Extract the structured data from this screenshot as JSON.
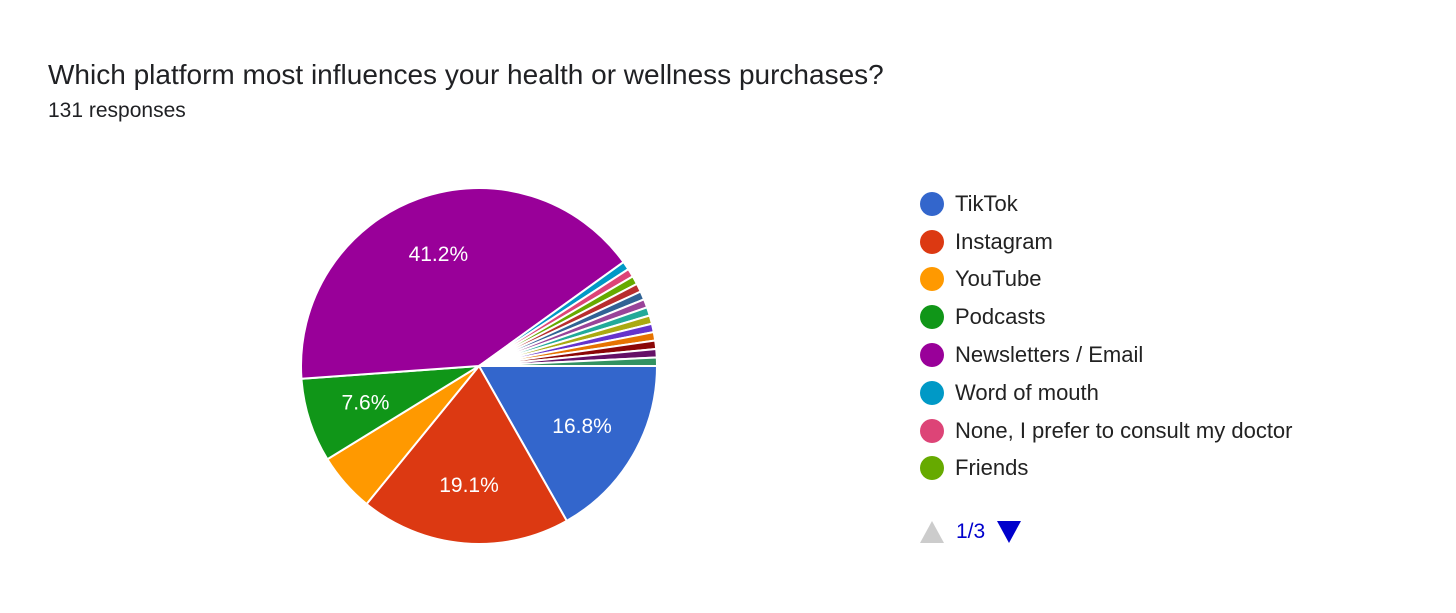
{
  "title": "Which platform most influences your health or wellness purchases?",
  "responses": "131 responses",
  "chart_data": {
    "type": "pie",
    "total": 131,
    "start": "east, clockwise",
    "slices": [
      {
        "name": "TikTok",
        "value": 22,
        "label": "16.8%",
        "color": "#3366cc"
      },
      {
        "name": "Instagram",
        "value": 25,
        "label": "19.1%",
        "color": "#dc3912"
      },
      {
        "name": "YouTube",
        "value": 7,
        "color": "#ff9900"
      },
      {
        "name": "Podcasts",
        "value": 10,
        "label": "7.6%",
        "color": "#109618"
      },
      {
        "name": "Newsletters / Email",
        "value": 54,
        "label": "41.2%",
        "color": "#990099"
      },
      {
        "name": "Word of mouth",
        "value": 1,
        "color": "#0099c6"
      },
      {
        "name": "None, I prefer to consult my doctor",
        "value": 1,
        "color": "#dd4477"
      },
      {
        "name": "Friends",
        "value": 1,
        "color": "#66aa00"
      },
      {
        "value": 1,
        "color": "#b82e2e"
      },
      {
        "value": 1,
        "color": "#316395"
      },
      {
        "value": 1,
        "color": "#994499"
      },
      {
        "value": 1,
        "color": "#22aa99"
      },
      {
        "value": 1,
        "color": "#aaaa11"
      },
      {
        "value": 1,
        "color": "#6633cc"
      },
      {
        "value": 1,
        "color": "#e67300"
      },
      {
        "value": 1,
        "color": "#8b0707"
      },
      {
        "value": 1,
        "color": "#651067"
      },
      {
        "value": 1,
        "color": "#329262"
      }
    ],
    "legend_position": "right"
  },
  "legend": {
    "items": [
      "TikTok",
      "Instagram",
      "YouTube",
      "Podcasts",
      "Newsletters / Email",
      "Word of mouth",
      "None, I prefer to consult my doctor",
      "Friends"
    ],
    "page": "1/3"
  }
}
